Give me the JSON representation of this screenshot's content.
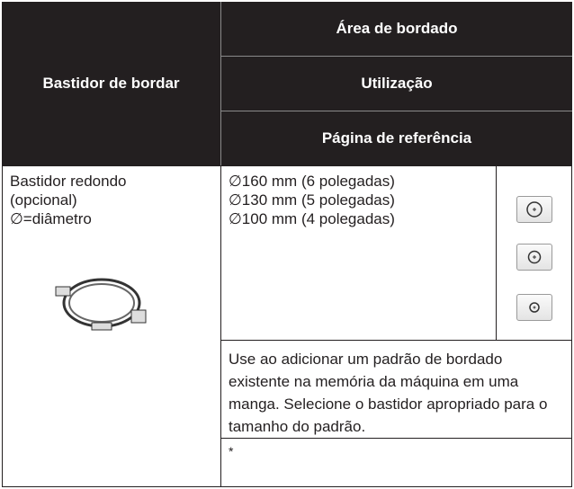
{
  "header": {
    "title": "Bastidor de bordar",
    "columns": [
      "Área de bordado",
      "Utilização",
      "Página de referência"
    ]
  },
  "row": {
    "frame_lines": [
      "Bastidor redondo",
      "(opcional)",
      "∅=diâmetro"
    ],
    "sizes": [
      "∅160 mm (6 polegadas)",
      "∅130 mm (5 polegadas)",
      "∅100 mm (4 polegadas)"
    ],
    "usage": "Use ao adicionar um padrão de bordado existente na memória da máquina em uma manga. Selecione o bastidor apropriado para o tamanho do padrão.",
    "reference": "*"
  }
}
